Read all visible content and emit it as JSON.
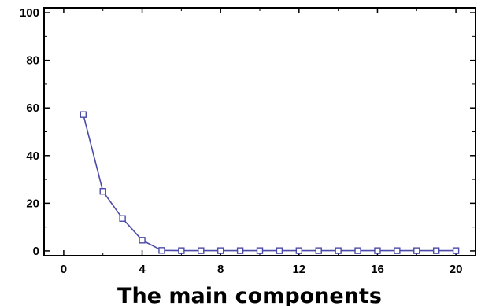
{
  "chart_data": {
    "type": "line",
    "title": "",
    "xlabel": "The main components",
    "ylabel": "",
    "xlim": [
      -1,
      21
    ],
    "ylim": [
      -2,
      102
    ],
    "xticks": [
      0,
      4,
      8,
      12,
      16,
      20
    ],
    "yticks": [
      0,
      20,
      40,
      60,
      80,
      100
    ],
    "x_tick_labels": [
      "0",
      "4",
      "8",
      "12",
      "16",
      "20"
    ],
    "y_tick_labels": [
      "0",
      "20",
      "40",
      "60",
      "80",
      "100"
    ],
    "grid": false,
    "legend": "none",
    "marker": "square",
    "series": [
      {
        "color": "#4a4aa8",
        "x": [
          1,
          2,
          3,
          4,
          5,
          6,
          7,
          8,
          9,
          10,
          11,
          12,
          13,
          14,
          15,
          16,
          17,
          18,
          19,
          20
        ],
        "y": [
          57.2,
          25.0,
          13.6,
          4.5,
          0.2,
          0.1,
          0.1,
          0.1,
          0.1,
          0.1,
          0.1,
          0.1,
          0.1,
          0.1,
          0.1,
          0.1,
          0.1,
          0.1,
          0.1,
          0.1
        ]
      }
    ]
  }
}
